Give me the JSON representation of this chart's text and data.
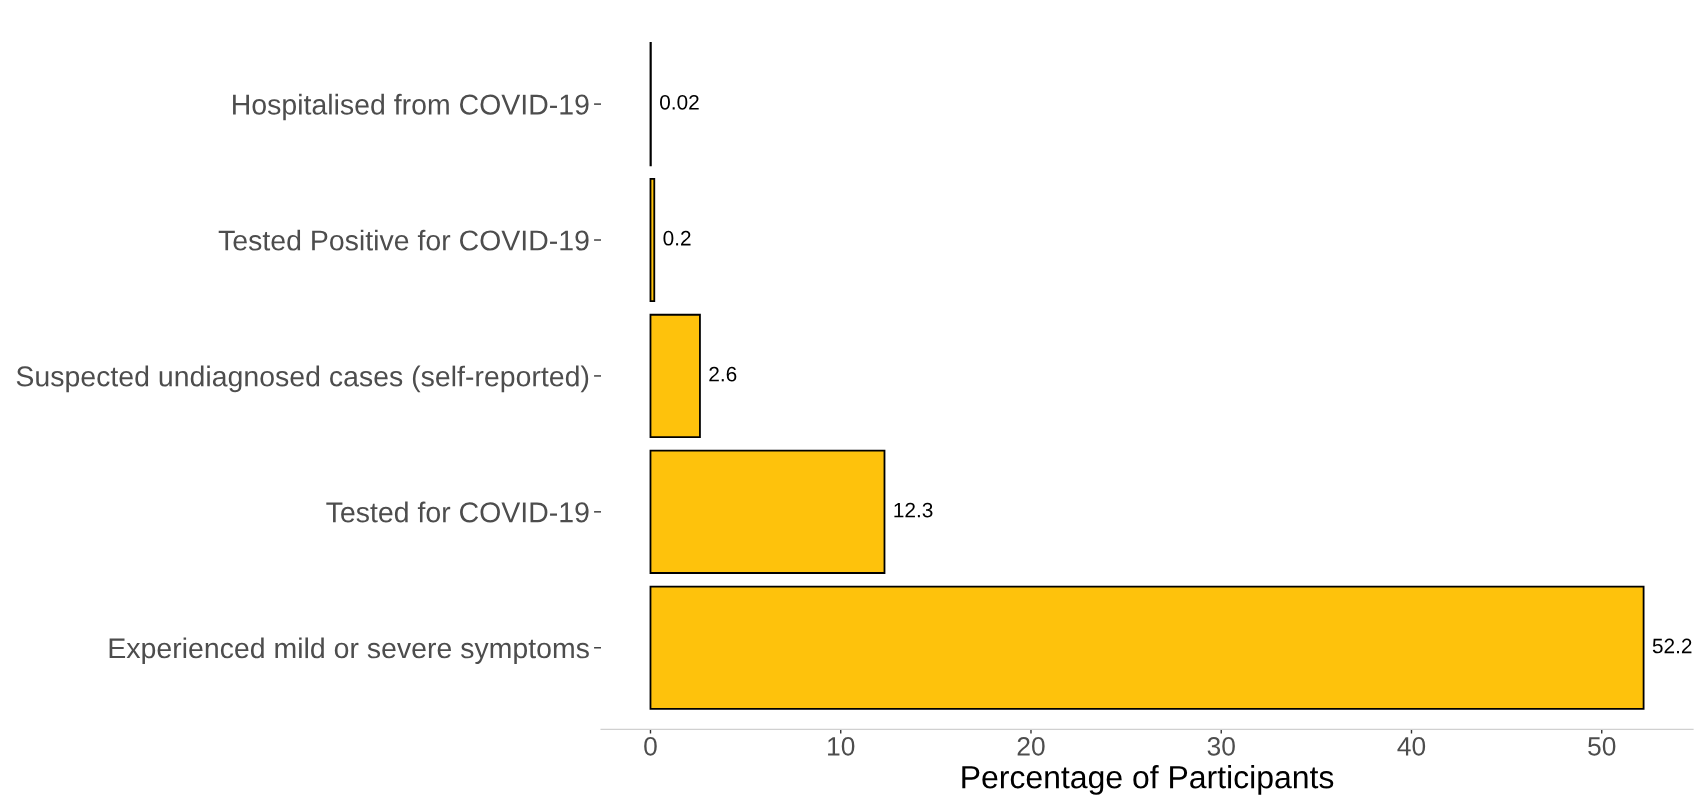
{
  "chart_data": {
    "type": "bar",
    "orientation": "horizontal",
    "categories": [
      "Hospitalised from COVID-19",
      "Tested Positive for COVID-19",
      "Suspected undiagnosed cases (self-reported)",
      "Tested for COVID-19",
      "Experienced mild or severe symptoms"
    ],
    "values": [
      0.02,
      0.2,
      2.6,
      12.3,
      52.2
    ],
    "color": "#fec20c",
    "xlabel": "Percentage of Participants",
    "xlim": [
      -2.6,
      54.8
    ],
    "xticks": [
      0,
      10,
      20,
      30,
      40,
      50
    ],
    "data_labels": true
  }
}
